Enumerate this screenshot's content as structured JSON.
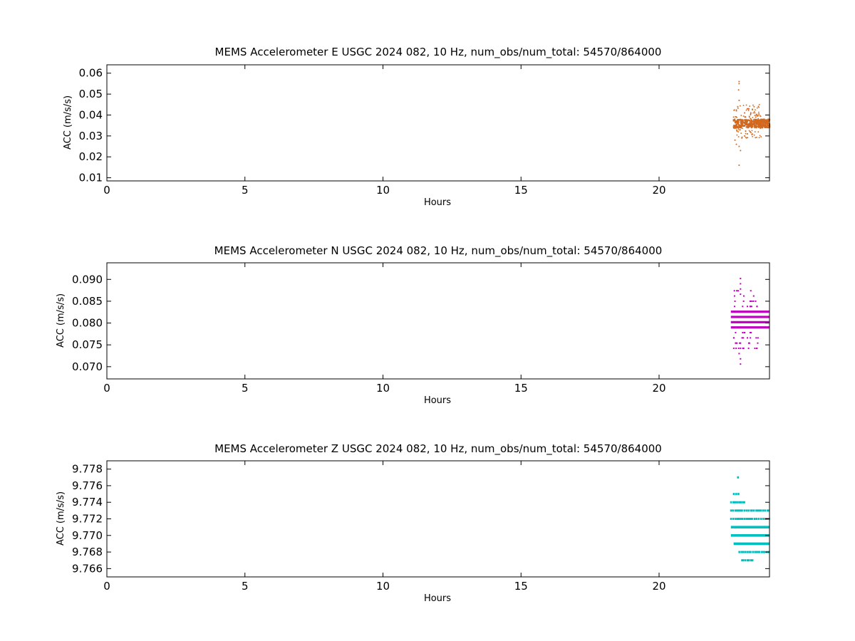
{
  "chart_data": [
    {
      "type": "scatter",
      "title": "MEMS Accelerometer E USGC 2024 082, 10 Hz, num_obs/num_total: 54570/864000",
      "xlabel": "Hours",
      "ylabel": "ACC (m/s/s)",
      "xlim": [
        0,
        24
      ],
      "ylim": [
        0.0085,
        0.064
      ],
      "xticks": [
        0,
        5,
        10,
        15,
        20
      ],
      "yticks": [
        0.01,
        0.02,
        0.03,
        0.04,
        0.05,
        0.06
      ],
      "ytick_labels": [
        "0.01",
        "0.02",
        "0.03",
        "0.04",
        "0.05",
        "0.06"
      ],
      "xtick_labels": [
        "0",
        "5",
        "10",
        "15",
        "20"
      ],
      "color": "#d2691e",
      "grid": false,
      "data_time_range_hours": [
        22.7,
        24.0
      ],
      "core_band": [
        0.034,
        0.038
      ],
      "points": [
        [
          22.9,
          0.056
        ],
        [
          22.9,
          0.055
        ],
        [
          22.88,
          0.052
        ],
        [
          22.9,
          0.047
        ],
        [
          22.85,
          0.044
        ],
        [
          23.2,
          0.043
        ],
        [
          23.1,
          0.041
        ],
        [
          22.8,
          0.042
        ],
        [
          22.7,
          0.039
        ],
        [
          23.5,
          0.039
        ],
        [
          22.8,
          0.026
        ],
        [
          22.9,
          0.025
        ],
        [
          22.95,
          0.023
        ],
        [
          22.9,
          0.016
        ],
        [
          23.2,
          0.031
        ],
        [
          23.1,
          0.03
        ],
        [
          22.75,
          0.028
        ],
        [
          23.0,
          0.029
        ],
        [
          23.3,
          0.032
        ]
      ]
    },
    {
      "type": "scatter",
      "title": "MEMS Accelerometer N USGC 2024 082, 10 Hz, num_obs/num_total: 54570/864000",
      "xlabel": "Hours",
      "ylabel": "ACC (m/s/s)",
      "xlim": [
        0,
        24
      ],
      "ylim": [
        0.0672,
        0.0938
      ],
      "xticks": [
        0,
        5,
        10,
        15,
        20
      ],
      "yticks": [
        0.07,
        0.075,
        0.08,
        0.085,
        0.09
      ],
      "ytick_labels": [
        "0.070",
        "0.075",
        "0.080",
        "0.085",
        "0.090"
      ],
      "xtick_labels": [
        "0",
        "5",
        "10",
        "15",
        "20"
      ],
      "color": "#bf00bf",
      "grid": false,
      "data_time_range_hours": [
        22.6,
        24.0
      ],
      "levels": [
        0.079,
        0.0802,
        0.0814,
        0.0826
      ],
      "points": [
        [
          22.95,
          0.0902
        ],
        [
          22.95,
          0.089
        ],
        [
          22.95,
          0.0878
        ],
        [
          22.95,
          0.0866
        ],
        [
          23.3,
          0.085
        ],
        [
          23.2,
          0.0838
        ],
        [
          22.95,
          0.0754
        ],
        [
          22.95,
          0.0742
        ],
        [
          22.9,
          0.073
        ],
        [
          22.95,
          0.0718
        ],
        [
          22.95,
          0.0706
        ],
        [
          23.25,
          0.0754
        ],
        [
          23.3,
          0.0778
        ],
        [
          23.2,
          0.0766
        ]
      ]
    },
    {
      "type": "scatter",
      "title": "MEMS Accelerometer Z USGC 2024 082, 10 Hz, num_obs/num_total: 54570/864000",
      "xlabel": "Hours",
      "ylabel": "ACC (m/s/s)",
      "xlim": [
        0,
        24
      ],
      "ylim": [
        9.765,
        9.779
      ],
      "xticks": [
        0,
        5,
        10,
        15,
        20
      ],
      "yticks": [
        9.766,
        9.768,
        9.77,
        9.772,
        9.774,
        9.776,
        9.778
      ],
      "ytick_labels": [
        "9.766",
        "9.768",
        "9.770",
        "9.772",
        "9.774",
        "9.776",
        "9.778"
      ],
      "xtick_labels": [
        "0",
        "5",
        "10",
        "15",
        "20"
      ],
      "color": "#00bfbf",
      "grid": false,
      "data_time_range_hours": [
        22.6,
        24.0
      ],
      "level_rows": [
        {
          "y": 9.777,
          "x0": 22.85,
          "x1": 22.88
        },
        {
          "y": 9.775,
          "x0": 22.7,
          "x1": 22.9
        },
        {
          "y": 9.774,
          "x0": 22.6,
          "x1": 23.1
        },
        {
          "y": 9.773,
          "x0": 22.6,
          "x1": 24.0
        },
        {
          "y": 9.772,
          "x0": 22.6,
          "x1": 24.0
        },
        {
          "y": 9.771,
          "x0": 22.6,
          "x1": 24.0
        },
        {
          "y": 9.77,
          "x0": 22.6,
          "x1": 24.0
        },
        {
          "y": 9.769,
          "x0": 22.7,
          "x1": 24.0
        },
        {
          "y": 9.768,
          "x0": 22.9,
          "x1": 24.0
        },
        {
          "y": 9.767,
          "x0": 23.0,
          "x1": 23.4
        }
      ]
    }
  ]
}
